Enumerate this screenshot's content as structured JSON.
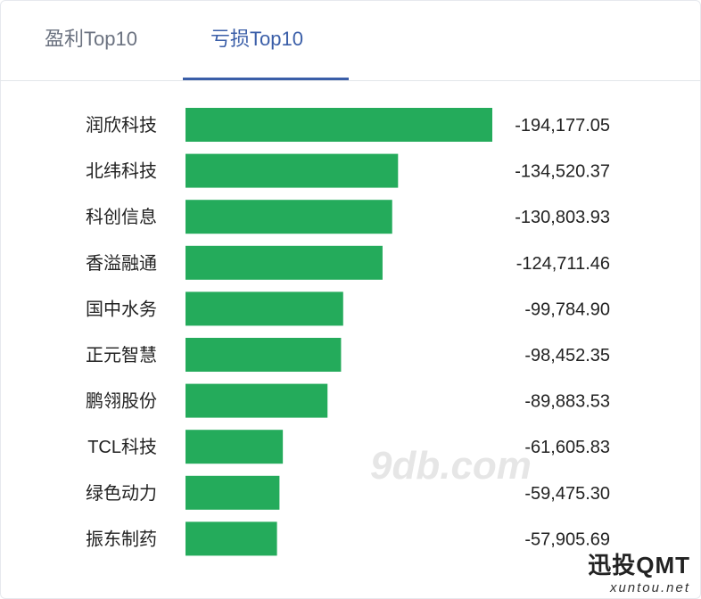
{
  "tabs": [
    {
      "label": "盈利Top10"
    },
    {
      "label": "亏损Top10"
    }
  ],
  "colors": {
    "bar": "#24ab5b",
    "active_tab": "#3a5ea8"
  },
  "chart_data": {
    "type": "bar",
    "orientation": "horizontal",
    "categories": [
      "润欣科技",
      "北纬科技",
      "科创信息",
      "香溢融通",
      "国中水务",
      "正元智慧",
      "鹏翎股份",
      "TCL科技",
      "绿色动力",
      "振东制药"
    ],
    "values": [
      -194177.05,
      -134520.37,
      -130803.93,
      -124711.46,
      -99784.9,
      -98452.35,
      -89883.53,
      -61605.83,
      -59475.3,
      -57905.69
    ],
    "value_labels": [
      "-194,177.05",
      "-134,520.37",
      "-130,803.93",
      "-124,711.46",
      "-99,784.90",
      "-98,452.35",
      "-89,883.53",
      "-61,605.83",
      "-59,475.30",
      "-57,905.69"
    ],
    "title": "",
    "xlabel": "",
    "ylabel": ""
  },
  "watermark": {
    "center": "9db.com",
    "title": "迅投QMT",
    "sub": "xuntou.net"
  }
}
